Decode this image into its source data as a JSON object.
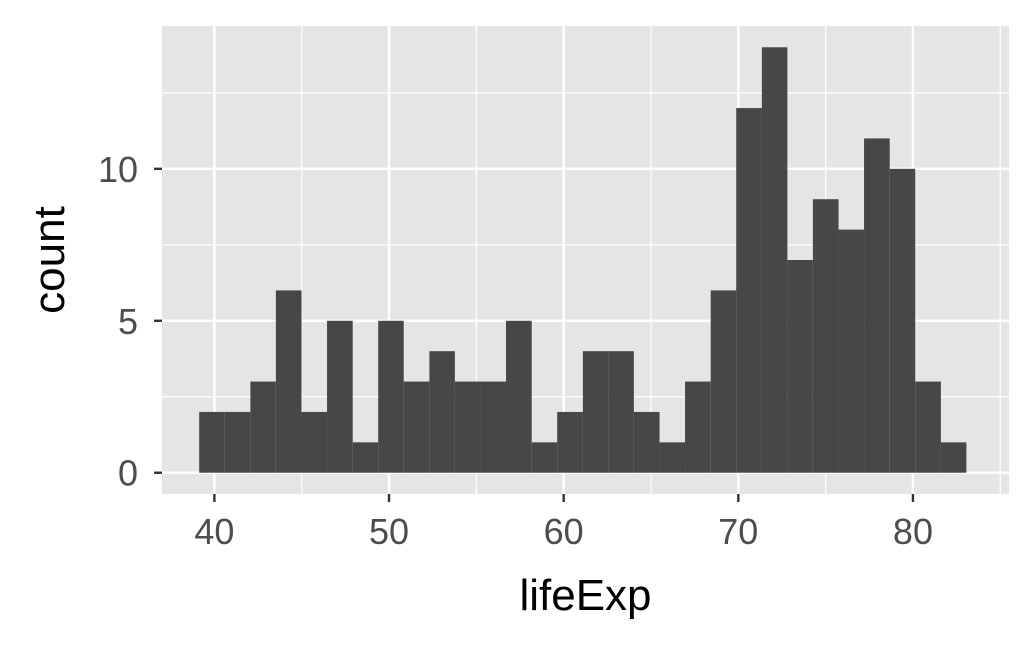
{
  "chart_data": {
    "type": "bar",
    "subtype": "histogram",
    "title": "",
    "xlabel": "lifeExp",
    "ylabel": "count",
    "xlim": [
      37,
      85.5
    ],
    "ylim": [
      -0.7,
      14.7
    ],
    "x_ticks": [
      40,
      50,
      60,
      70,
      80
    ],
    "x_tick_labels": [
      "40",
      "50",
      "60",
      "70",
      "80"
    ],
    "y_ticks": [
      0,
      5,
      10
    ],
    "y_tick_labels": [
      "0",
      "5",
      "10"
    ],
    "grid": true,
    "legend": "none",
    "bins": [
      {
        "x0": 39.13,
        "x1": 40.59,
        "count": 2
      },
      {
        "x0": 40.59,
        "x1": 42.06,
        "count": 2
      },
      {
        "x0": 42.06,
        "x1": 43.52,
        "count": 3
      },
      {
        "x0": 43.52,
        "x1": 44.99,
        "count": 6
      },
      {
        "x0": 44.99,
        "x1": 46.45,
        "count": 2
      },
      {
        "x0": 46.45,
        "x1": 47.92,
        "count": 5
      },
      {
        "x0": 47.92,
        "x1": 49.38,
        "count": 1
      },
      {
        "x0": 49.38,
        "x1": 50.84,
        "count": 5
      },
      {
        "x0": 50.84,
        "x1": 52.31,
        "count": 3
      },
      {
        "x0": 52.31,
        "x1": 53.77,
        "count": 4
      },
      {
        "x0": 53.77,
        "x1": 55.24,
        "count": 3
      },
      {
        "x0": 55.24,
        "x1": 56.7,
        "count": 3
      },
      {
        "x0": 56.7,
        "x1": 58.17,
        "count": 5
      },
      {
        "x0": 58.17,
        "x1": 59.63,
        "count": 1
      },
      {
        "x0": 59.63,
        "x1": 61.1,
        "count": 2
      },
      {
        "x0": 61.1,
        "x1": 62.56,
        "count": 4
      },
      {
        "x0": 62.56,
        "x1": 64.02,
        "count": 4
      },
      {
        "x0": 64.02,
        "x1": 65.49,
        "count": 2
      },
      {
        "x0": 65.49,
        "x1": 66.95,
        "count": 1
      },
      {
        "x0": 66.95,
        "x1": 68.42,
        "count": 3
      },
      {
        "x0": 68.42,
        "x1": 69.88,
        "count": 6
      },
      {
        "x0": 69.88,
        "x1": 71.35,
        "count": 12
      },
      {
        "x0": 71.35,
        "x1": 72.81,
        "count": 14
      },
      {
        "x0": 72.81,
        "x1": 74.27,
        "count": 7
      },
      {
        "x0": 74.27,
        "x1": 75.74,
        "count": 9
      },
      {
        "x0": 75.74,
        "x1": 77.2,
        "count": 8
      },
      {
        "x0": 77.2,
        "x1": 78.67,
        "count": 11
      },
      {
        "x0": 78.67,
        "x1": 80.13,
        "count": 10
      },
      {
        "x0": 80.13,
        "x1": 81.6,
        "count": 3
      },
      {
        "x0": 81.6,
        "x1": 83.06,
        "count": 1
      }
    ],
    "colors": {
      "panel_background": "#e5e5e5",
      "grid": "#ffffff",
      "bar_fill": "#474747",
      "tick": "#333333",
      "tick_text": "#4d4d4d",
      "title_text": "#000000"
    }
  }
}
